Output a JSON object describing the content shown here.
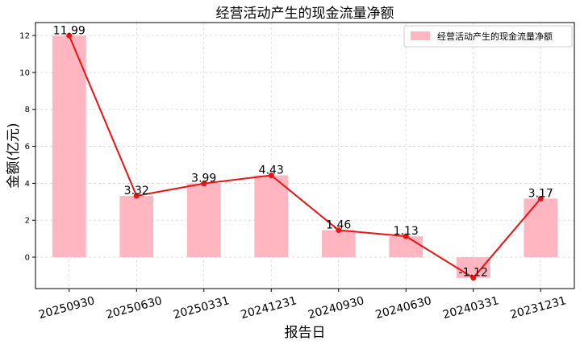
{
  "chart_data": {
    "type": "bar",
    "title": "经营活动产生的现金流量净额",
    "xlabel": "报告日",
    "ylabel": "金额(亿元)",
    "categories": [
      "20250930",
      "20250630",
      "20250331",
      "20241231",
      "20240930",
      "20240630",
      "20240331",
      "20231231"
    ],
    "series": [
      {
        "name": "经营活动产生的现金流量净额",
        "values": [
          11.99,
          3.32,
          3.99,
          4.43,
          1.46,
          1.13,
          -1.12,
          3.17
        ],
        "bar_color": "#ffb6c1",
        "line_color": "#ee1111"
      }
    ],
    "data_labels": [
      "11.99",
      "3.32",
      "3.99",
      "4.43",
      "1.46",
      "1.13",
      "-1.12",
      "3.17"
    ],
    "yticks": [
      0,
      2,
      4,
      6,
      8,
      10,
      12
    ],
    "ylim": [
      -1.7,
      12.7
    ],
    "grid": true,
    "legend_position": "top-right"
  }
}
